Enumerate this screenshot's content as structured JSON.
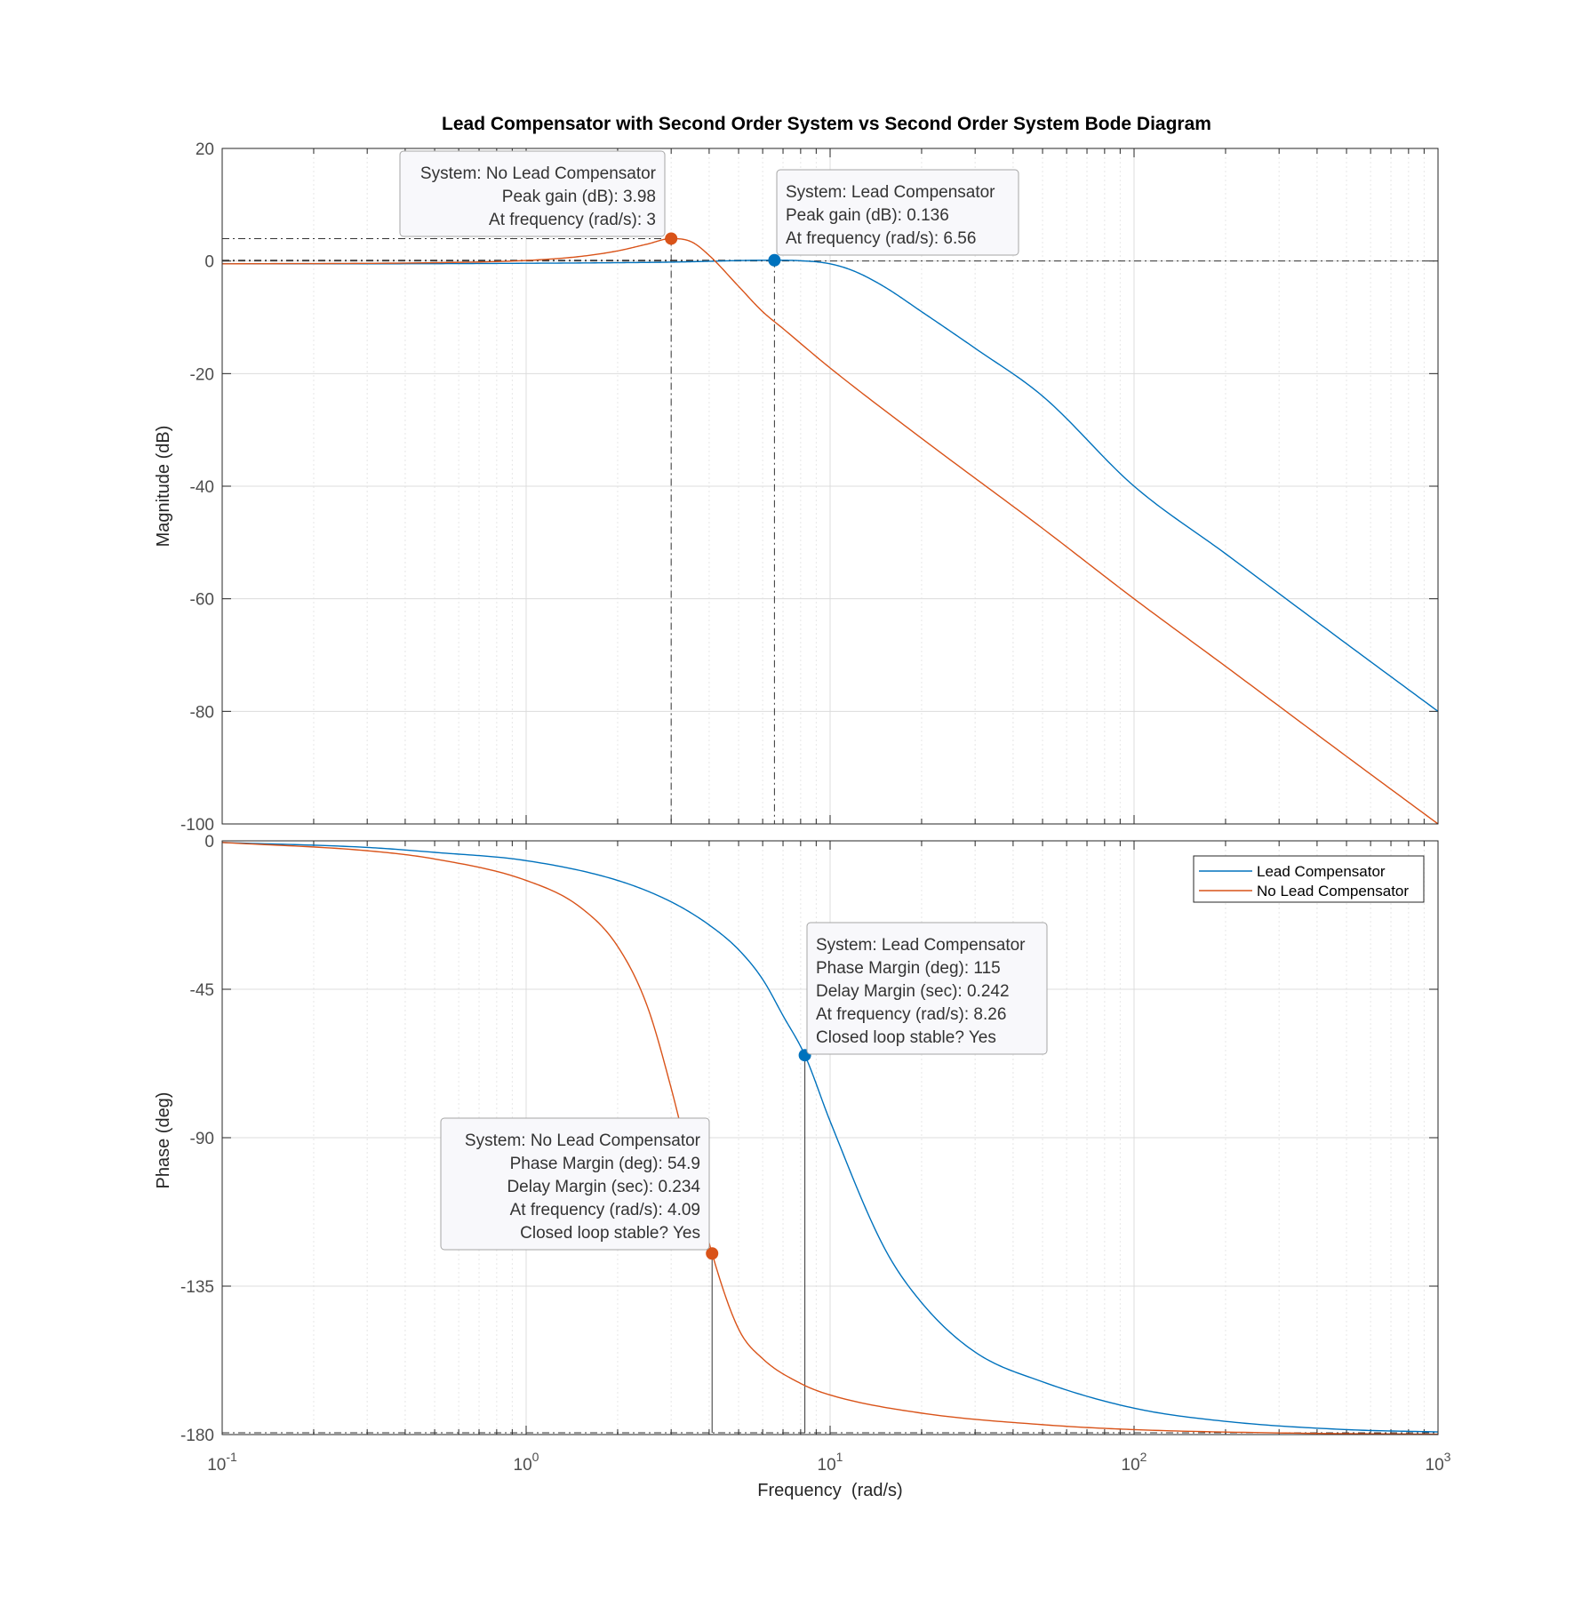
{
  "title": "Lead Compensator with Second Order System vs Second Order System Bode Diagram",
  "colors": {
    "lead": "#0072BD",
    "no_lead": "#D95319",
    "grid": "#d9d9d9",
    "axis": "#262626",
    "tick_label": "#4d4d4d"
  },
  "chart_data": [
    {
      "type": "line",
      "panel": "magnitude",
      "title": "Lead Compensator with Second Order System vs Second Order System Bode Diagram",
      "xlabel": "",
      "ylabel": "Magnitude (dB)",
      "xscale": "log",
      "xlim": [
        0.1,
        1000
      ],
      "ylim": [
        -100,
        20
      ],
      "yticks": [
        "20",
        "0",
        "-20",
        "-40",
        "-60",
        "-80",
        "-100"
      ],
      "grid": true,
      "series": [
        {
          "name": "Lead Compensator",
          "color": "#0072BD",
          "x": [
            0.1,
            0.2,
            0.5,
            1,
            2,
            3,
            4,
            5,
            6.56,
            8,
            10,
            12,
            15,
            20,
            30,
            50,
            100,
            200,
            500,
            1000
          ],
          "y": [
            -0.5,
            -0.5,
            -0.47,
            -0.4,
            -0.3,
            -0.2,
            -0.05,
            0.08,
            0.136,
            0.05,
            -0.5,
            -1.8,
            -4.5,
            -9,
            -15.5,
            -24,
            -40,
            -52,
            -68,
            -80
          ]
        },
        {
          "name": "No Lead Compensator",
          "color": "#D95319",
          "x": [
            0.1,
            0.5,
            1,
            1.5,
            2,
            2.5,
            3,
            3.5,
            4,
            5,
            6,
            7,
            10,
            20,
            50,
            100,
            200,
            500,
            1000
          ],
          "y": [
            -0.5,
            -0.3,
            0.1,
            0.8,
            1.8,
            3.0,
            3.98,
            3.4,
            1.0,
            -4.5,
            -9,
            -12,
            -19,
            -31.5,
            -47.5,
            -60,
            -72,
            -88,
            -100
          ]
        }
      ],
      "annotations": [
        {
          "series": "No Lead Compensator",
          "x": 3,
          "y": 3.98,
          "lines": [
            "System: No Lead Compensator",
            "Peak gain (dB): 3.98",
            "At frequency (rad/s): 3"
          ]
        },
        {
          "series": "Lead Compensator",
          "x": 6.56,
          "y": 0.136,
          "lines": [
            "System: Lead Compensator",
            "Peak gain (dB): 0.136",
            "At frequency (rad/s): 6.56"
          ]
        }
      ]
    },
    {
      "type": "line",
      "panel": "phase",
      "xlabel": "Frequency  (rad/s)",
      "ylabel": "Phase (deg)",
      "xscale": "log",
      "xlim": [
        0.1,
        1000
      ],
      "ylim": [
        -180,
        0
      ],
      "yticks": [
        "0",
        "-45",
        "-90",
        "-135",
        "-180"
      ],
      "xticks": [
        {
          "base": "10",
          "exp": "-1"
        },
        {
          "base": "10",
          "exp": "0"
        },
        {
          "base": "10",
          "exp": "1"
        },
        {
          "base": "10",
          "exp": "2"
        },
        {
          "base": "10",
          "exp": "3"
        }
      ],
      "grid": true,
      "legend": {
        "position": "top-right",
        "entries": [
          "Lead Compensator",
          "No Lead Compensator"
        ]
      },
      "series": [
        {
          "name": "Lead Compensator",
          "color": "#0072BD",
          "x": [
            0.1,
            0.3,
            0.5,
            1,
            2,
            3,
            4,
            5,
            6,
            7,
            8.26,
            10,
            15,
            20,
            30,
            50,
            100,
            200,
            500,
            1000
          ],
          "y": [
            -0.5,
            -2,
            -3.5,
            -6,
            -12,
            -18.5,
            -25.5,
            -33,
            -42,
            -53,
            -65,
            -85,
            -123,
            -140,
            -155,
            -164,
            -172,
            -176,
            -178.5,
            -179.2
          ]
        },
        {
          "name": "No Lead Compensator",
          "color": "#D95319",
          "x": [
            0.1,
            0.3,
            0.5,
            1,
            1.5,
            2,
            2.5,
            3,
            3.5,
            4.09,
            5,
            6,
            8,
            10,
            20,
            50,
            100,
            300,
            1000
          ],
          "y": [
            -0.5,
            -3,
            -5.5,
            -12,
            -20,
            -32,
            -50,
            -75,
            -100,
            -125.1,
            -148,
            -157,
            -164.5,
            -168,
            -173.5,
            -177,
            -178.5,
            -179.5,
            -179.9
          ]
        }
      ],
      "annotations": [
        {
          "series": "Lead Compensator",
          "x": 8.26,
          "y": -65,
          "lines": [
            "System: Lead Compensator",
            "Phase Margin (deg): 115",
            "Delay Margin (sec): 0.242",
            "At frequency (rad/s): 8.26",
            "Closed loop stable? Yes"
          ]
        },
        {
          "series": "No Lead Compensator",
          "x": 4.09,
          "y": -125.1,
          "lines": [
            "System: No Lead Compensator",
            "Phase Margin (deg): 54.9",
            "Delay Margin (sec): 0.234",
            "At frequency (rad/s): 4.09",
            "Closed loop stable? Yes"
          ]
        }
      ]
    }
  ]
}
